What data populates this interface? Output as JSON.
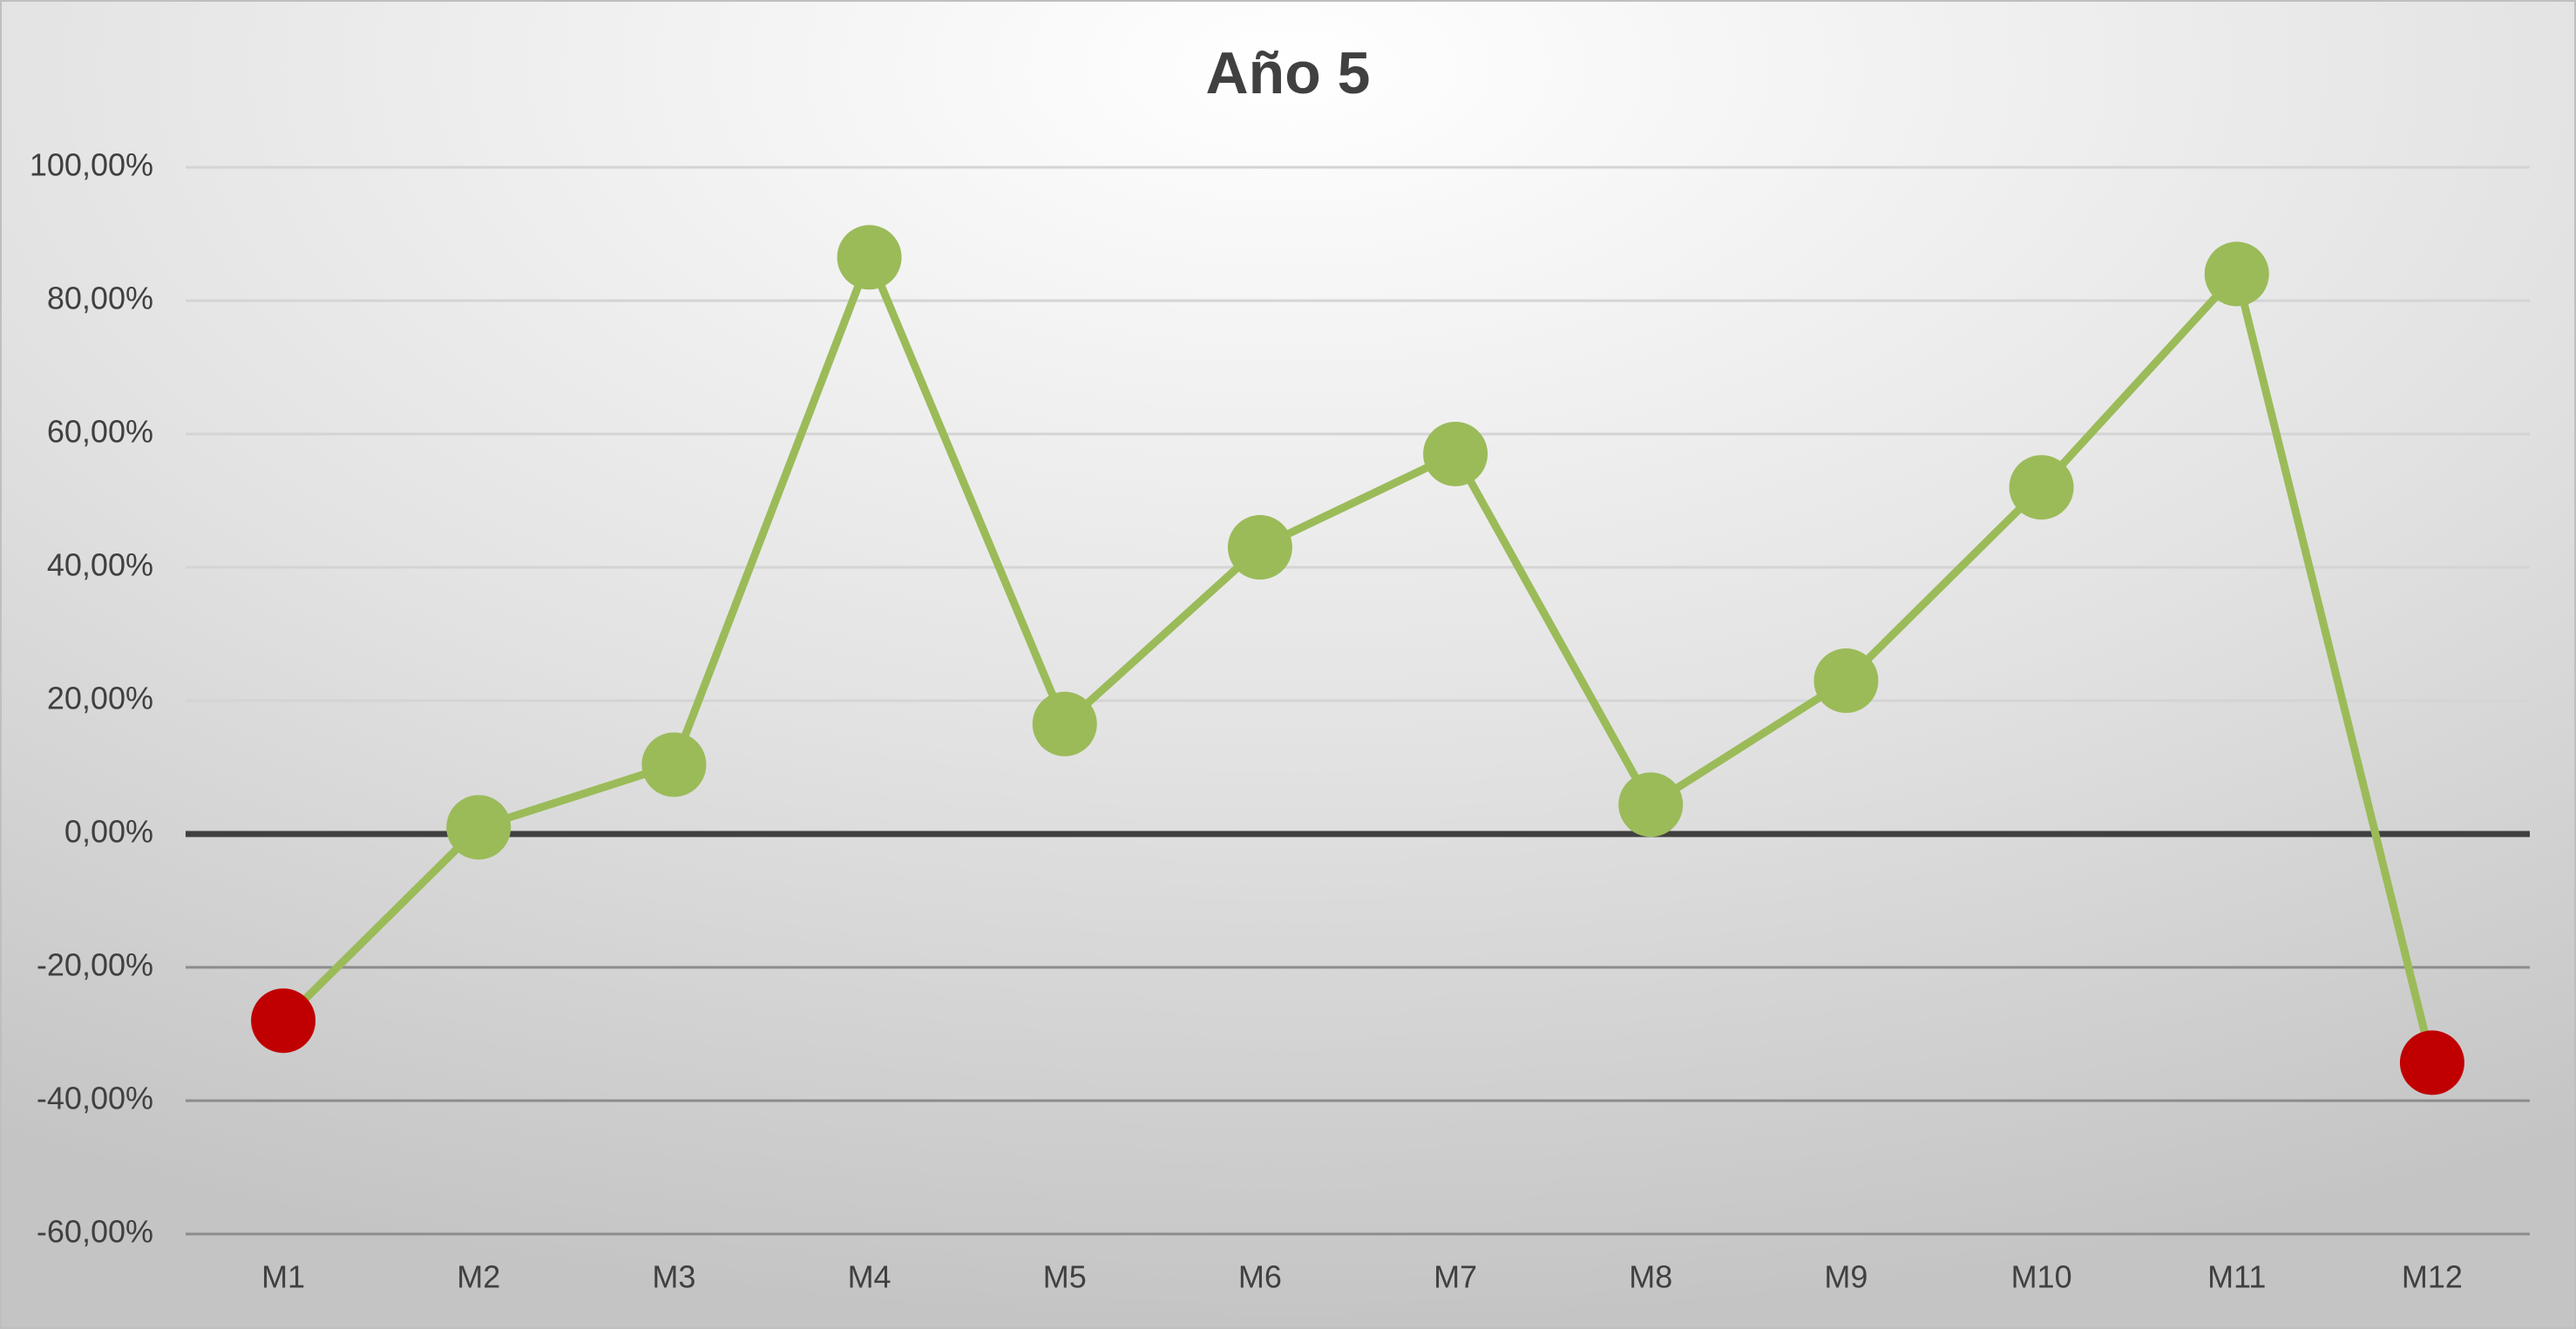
{
  "chart_data": {
    "type": "line",
    "title": "Año 5",
    "categories": [
      "M1",
      "M2",
      "M3",
      "M4",
      "M5",
      "M6",
      "M7",
      "M8",
      "M9",
      "M10",
      "M11",
      "M12"
    ],
    "series": [
      {
        "color": "#9bbb59",
        "negative_color": "#c00000",
        "values": [
          -28,
          1,
          10.4,
          86.5,
          16.5,
          43,
          57,
          4.4,
          23,
          52,
          84,
          -34.3
        ]
      }
    ],
    "ylim": [
      -60,
      100
    ],
    "yticks": [
      {
        "value": -60,
        "label": "-60,00%"
      },
      {
        "value": -40,
        "label": "-40,00%"
      },
      {
        "value": -20,
        "label": "-20,00%"
      },
      {
        "value": 0,
        "label": "0,00%"
      },
      {
        "value": 20,
        "label": "20,00%"
      },
      {
        "value": 40,
        "label": "40,00%"
      },
      {
        "value": 60,
        "label": "60,00%"
      },
      {
        "value": 80,
        "label": "80,00%"
      },
      {
        "value": 100,
        "label": "100,00%"
      }
    ],
    "grid": true
  }
}
